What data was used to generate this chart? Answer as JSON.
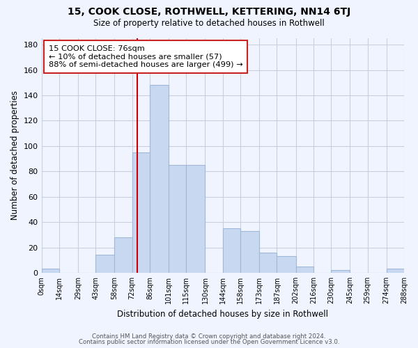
{
  "title": "15, COOK CLOSE, ROTHWELL, KETTERING, NN14 6TJ",
  "subtitle": "Size of property relative to detached houses in Rothwell",
  "xlabel": "Distribution of detached houses by size in Rothwell",
  "ylabel": "Number of detached properties",
  "bar_color": "#c8d8f0",
  "bar_edge_color": "#a0b8d8",
  "vline_x": 76,
  "vline_color": "#cc0000",
  "annotation_title": "15 COOK CLOSE: 76sqm",
  "annotation_line1": "← 10% of detached houses are smaller (57)",
  "annotation_line2": "88% of semi-detached houses are larger (499) →",
  "bins": [
    0,
    14,
    29,
    43,
    58,
    72,
    86,
    101,
    115,
    130,
    144,
    158,
    173,
    187,
    202,
    216,
    230,
    245,
    259,
    274,
    288
  ],
  "counts": [
    3,
    0,
    0,
    14,
    28,
    95,
    148,
    85,
    85,
    0,
    35,
    33,
    16,
    13,
    5,
    0,
    2,
    0,
    0,
    3
  ],
  "ylim": [
    0,
    185
  ],
  "yticks": [
    0,
    20,
    40,
    60,
    80,
    100,
    120,
    140,
    160,
    180
  ],
  "tick_labels": [
    "0sqm",
    "14sqm",
    "29sqm",
    "43sqm",
    "58sqm",
    "72sqm",
    "86sqm",
    "101sqm",
    "115sqm",
    "130sqm",
    "144sqm",
    "158sqm",
    "173sqm",
    "187sqm",
    "202sqm",
    "216sqm",
    "230sqm",
    "245sqm",
    "259sqm",
    "274sqm",
    "288sqm"
  ],
  "footer_line1": "Contains HM Land Registry data © Crown copyright and database right 2024.",
  "footer_line2": "Contains public sector information licensed under the Open Government Licence v3.0.",
  "bg_color": "#f0f4ff",
  "grid_color": "#c8d0e0"
}
